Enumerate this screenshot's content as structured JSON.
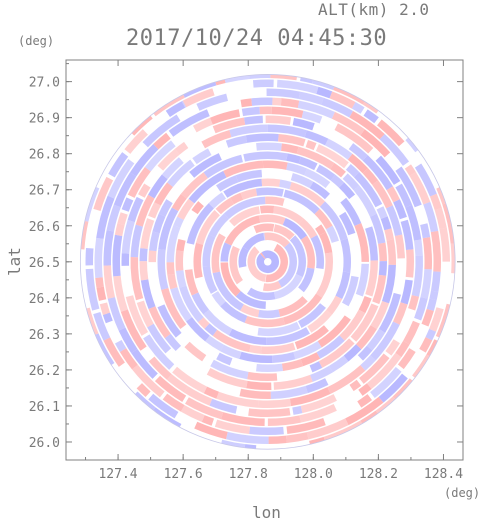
{
  "header": {
    "altitude_label": "ALT(km) 2.0",
    "timestamp": "2017/10/24 04:45:30"
  },
  "chart_data": {
    "type": "heatmap",
    "title": "2017/10/24 04:45:30",
    "subtitle": "ALT(km) 2.0",
    "xlabel": "lon",
    "ylabel": "lat",
    "x_unit": "(deg)",
    "y_unit": "(deg)",
    "xlim": [
      127.24,
      128.46
    ],
    "ylim": [
      25.95,
      27.06
    ],
    "x_ticks": [
      127.4,
      127.6,
      127.8,
      128.0,
      128.2,
      128.4
    ],
    "x_tick_labels": [
      "127.4",
      "127.6",
      "127.8",
      "128.0",
      "128.2",
      "128.4"
    ],
    "y_ticks": [
      26.0,
      26.1,
      26.2,
      26.3,
      26.4,
      26.5,
      26.6,
      26.7,
      26.8,
      26.9,
      27.0
    ],
    "y_tick_labels": [
      "26.0",
      "26.1",
      "26.2",
      "26.3",
      "26.4",
      "26.5",
      "26.6",
      "26.7",
      "26.8",
      "26.9",
      "27.0"
    ],
    "radar_center": {
      "lon": 127.86,
      "lat": 26.5
    },
    "radar_range_deg_lat": 0.52,
    "colors": {
      "positive": "#ffb0b0",
      "negative": "#b4b4ff",
      "frame": "#808080"
    },
    "grid": false
  }
}
